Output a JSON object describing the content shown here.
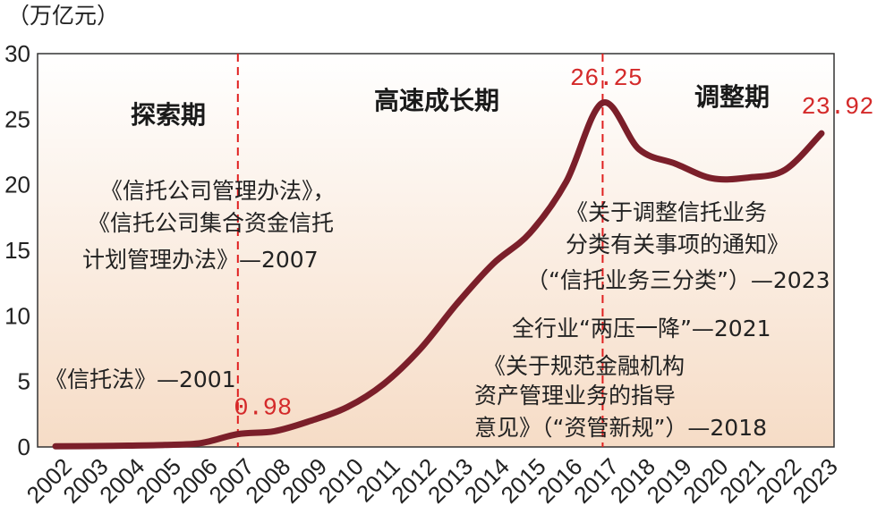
{
  "chart_data": {
    "type": "line",
    "unit_label": "（万亿元）",
    "y_ticks": [
      0,
      5,
      10,
      15,
      20,
      25,
      30
    ],
    "ylim": [
      0,
      30
    ],
    "categories": [
      "2002",
      "2003",
      "2004",
      "2005",
      "2006",
      "2007",
      "2008",
      "2009",
      "2010",
      "2011",
      "2012",
      "2013",
      "2014",
      "2015",
      "2016",
      "2017",
      "2018",
      "2019",
      "2020",
      "2021",
      "2022",
      "2023"
    ],
    "series": [
      {
        "values": [
          0.05,
          0.07,
          0.1,
          0.15,
          0.3,
          0.98,
          1.2,
          2.0,
          3.04,
          4.81,
          7.47,
          10.91,
          13.98,
          16.3,
          20.22,
          26.25,
          22.7,
          21.6,
          20.49,
          20.55,
          21.14,
          23.92
        ]
      }
    ],
    "phase_dividers": [
      "2007",
      "2017"
    ],
    "phases": [
      "探索期",
      "高速成长期",
      "调整期"
    ],
    "value_labels": [
      {
        "category": "2007",
        "text": "0.98"
      },
      {
        "category": "2017",
        "text": "26.25"
      },
      {
        "category": "2023",
        "text": "23.92"
      }
    ],
    "annotations": [
      {
        "lines": [
          "《信托法》—2001"
        ]
      },
      {
        "lines": [
          "《信托公司管理办法》，",
          "《信托公司集合资金信托",
          "计划管理办法》—2007"
        ]
      },
      {
        "lines": [
          "《关于规范金融机构",
          "资产管理业务的指导",
          "意见》（“资管新规”）—2018"
        ]
      },
      {
        "lines": [
          "全行业“两压一降”—2021"
        ]
      },
      {
        "lines": [
          "《关于调整信托业务",
          "分类有关事项的通知》",
          "（“信托业务三分类”）—2023"
        ]
      }
    ],
    "colors": {
      "line": "#7b1f2a",
      "divider": "#e02020",
      "value_label": "#d42a2a",
      "fill_top": "#ffffff",
      "fill_bottom": "#f6dcc6"
    },
    "grid": false
  }
}
